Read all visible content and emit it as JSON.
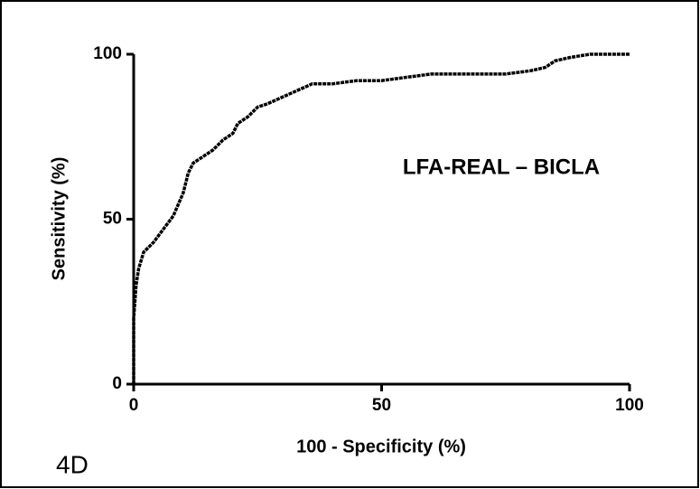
{
  "chart_data": {
    "type": "line",
    "xlabel": "100 - Specificity (%)",
    "ylabel": "Sensitivity (%)",
    "annotation": "LFA-REAL – BICLA",
    "panel_label": "4D",
    "xlim": [
      0,
      100
    ],
    "ylim": [
      0,
      100
    ],
    "xticks": [
      0,
      50,
      100
    ],
    "yticks": [
      0,
      50,
      100
    ],
    "series": [
      {
        "name": "LFA-REAL – BICLA",
        "color": "#000000",
        "x": [
          0,
          0,
          0.5,
          1,
          2,
          4,
          6,
          8,
          10,
          11,
          12,
          14,
          16,
          18,
          20,
          21,
          23,
          25,
          27,
          30,
          33,
          36,
          40,
          45,
          50,
          55,
          60,
          70,
          75,
          80,
          83,
          85,
          88,
          92,
          100
        ],
        "values": [
          0,
          20,
          30,
          35,
          40,
          43,
          47,
          51,
          58,
          64,
          67,
          69,
          71,
          74,
          76,
          79,
          81,
          84,
          85,
          87,
          89,
          91,
          91,
          92,
          92,
          93,
          94,
          94,
          94,
          95,
          96,
          98,
          99,
          100,
          100
        ]
      }
    ]
  }
}
